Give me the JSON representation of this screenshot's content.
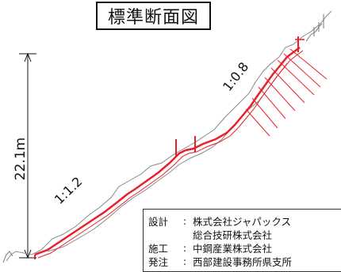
{
  "title": "標準断面図",
  "dimension": {
    "height_label": "22.1m"
  },
  "slopes": {
    "lower": "1:1.2",
    "upper": "1:0.8"
  },
  "info": {
    "rows": [
      {
        "key": "設計",
        "sep": ":",
        "value": "株式会社ジャパックス"
      },
      {
        "key": "",
        "sep": "",
        "value": "総合技研株式会社"
      },
      {
        "key": "施工",
        "sep": ":",
        "value": "中鋼産業株式会社"
      },
      {
        "key": "発注",
        "sep": ":",
        "value": "西部建設事務所県支所"
      }
    ]
  },
  "colors": {
    "structure": "#e8202a",
    "ground": "#888888",
    "ink": "#111111"
  }
}
